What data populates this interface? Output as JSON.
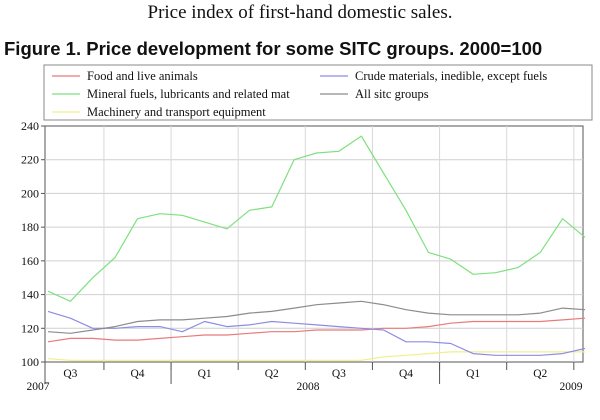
{
  "page": {
    "top_title": "Price index of first-hand domestic sales.",
    "figure_title": "Figure 1. Price development for some SITC groups. 2000=100"
  },
  "chart_data": {
    "type": "line",
    "title": "Figure 1. Price development for some SITC groups. 2000=100",
    "xlabel": "",
    "ylabel": "",
    "ylim": [
      100,
      240
    ],
    "yticks": [
      100,
      120,
      140,
      160,
      180,
      200,
      220,
      240
    ],
    "grid": "horizontal",
    "legend_position": "top",
    "x": [
      "2007-07",
      "2007-08",
      "2007-09",
      "2007-10",
      "2007-11",
      "2007-12",
      "2008-01",
      "2008-02",
      "2008-03",
      "2008-04",
      "2008-05",
      "2008-06",
      "2008-07",
      "2008-08",
      "2008-09",
      "2008-10",
      "2008-11",
      "2008-12",
      "2009-01",
      "2009-02",
      "2009-03",
      "2009-04",
      "2009-05",
      "2009-06",
      "2009-07"
    ],
    "quarter_labels": [
      "Q3",
      "Q4",
      "Q1",
      "Q2",
      "Q3",
      "Q4",
      "Q1",
      "Q2"
    ],
    "year_labels": [
      "2007",
      "2008",
      "2009"
    ],
    "series": [
      {
        "name": "Food and live animals",
        "color": "#e87b7b",
        "values": [
          112,
          114,
          114,
          113,
          113,
          114,
          115,
          116,
          116,
          117,
          118,
          118,
          119,
          119,
          119,
          120,
          120,
          121,
          123,
          124,
          124,
          124,
          124,
          125,
          126
        ]
      },
      {
        "name": "Mineral fuels, lubricants and related mat",
        "color": "#7ee07e",
        "values": [
          142,
          136,
          150,
          162,
          185,
          188,
          187,
          183,
          179,
          190,
          192,
          220,
          224,
          225,
          234,
          212,
          190,
          165,
          161,
          152,
          153,
          156,
          165,
          185,
          174
        ]
      },
      {
        "name": "Machinery and transport equipment",
        "color": "#f0f08c",
        "values": [
          102,
          101,
          101,
          101,
          101,
          101,
          101,
          101,
          101,
          101,
          101,
          101,
          101,
          101,
          101,
          103,
          104,
          105,
          106,
          106,
          106,
          106,
          106,
          106,
          106
        ]
      },
      {
        "name": "Crude materials, inedible, except fuels",
        "color": "#8c8ce6",
        "values": [
          130,
          126,
          120,
          120,
          121,
          121,
          118,
          124,
          121,
          122,
          124,
          123,
          122,
          121,
          120,
          119,
          112,
          112,
          111,
          105,
          104,
          104,
          104,
          105,
          108
        ]
      },
      {
        "name": "All sitc groups",
        "color": "#8c8c8c",
        "values": [
          118,
          117,
          119,
          121,
          124,
          125,
          125,
          126,
          127,
          129,
          130,
          132,
          134,
          135,
          136,
          134,
          131,
          129,
          128,
          128,
          128,
          128,
          129,
          132,
          131
        ]
      }
    ]
  }
}
